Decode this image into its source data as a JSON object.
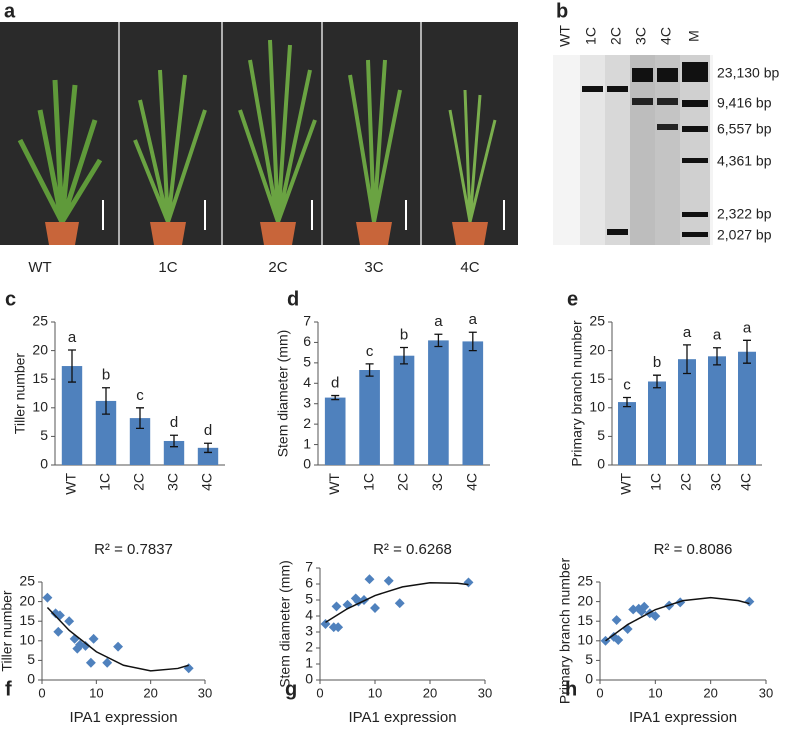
{
  "photo": {
    "panel": "a",
    "labels": [
      "WT",
      "1C",
      "2C",
      "3C",
      "4C"
    ]
  },
  "gel": {
    "panel": "b",
    "lanes": [
      "WT",
      "1C",
      "2C",
      "3C",
      "4C",
      "M"
    ],
    "markers": [
      "23,130 bp",
      "9,416 bp",
      "6,557 bp",
      "4,361 bp",
      "2,322 bp",
      "2,027 bp"
    ]
  },
  "chart_data": [
    {
      "type": "bar",
      "panel": "c",
      "ylabel": "Tiller number",
      "categories": [
        "WT",
        "1C",
        "2C",
        "3C",
        "4C"
      ],
      "values": [
        17.3,
        11.2,
        8.2,
        4.2,
        3.0
      ],
      "errors": [
        2.8,
        2.3,
        1.8,
        1.0,
        0.8
      ],
      "annotations": [
        "a",
        "b",
        "c",
        "d",
        "d"
      ],
      "color": "#4f81bd",
      "ylim": [
        0,
        25
      ],
      "yticks": [
        0,
        5,
        10,
        15,
        20,
        25
      ]
    },
    {
      "type": "bar",
      "panel": "d",
      "ylabel": "Stem diameter (mm)",
      "categories": [
        "WT",
        "1C",
        "2C",
        "3C",
        "4C"
      ],
      "values": [
        3.3,
        4.65,
        5.35,
        6.1,
        6.05
      ],
      "errors": [
        0.1,
        0.3,
        0.4,
        0.3,
        0.45
      ],
      "annotations": [
        "d",
        "c",
        "b",
        "a",
        "a"
      ],
      "color": "#4f81bd",
      "ylim": [
        0,
        7
      ],
      "yticks": [
        0,
        1,
        2,
        3,
        4,
        5,
        6,
        7
      ]
    },
    {
      "type": "bar",
      "panel": "e",
      "ylabel": "Primary branch number",
      "categories": [
        "WT",
        "1C",
        "2C",
        "3C",
        "4C"
      ],
      "values": [
        11,
        14.6,
        18.5,
        19,
        19.8
      ],
      "errors": [
        0.8,
        1.1,
        2.5,
        1.5,
        2.0
      ],
      "annotations": [
        "c",
        "b",
        "a",
        "a",
        "a"
      ],
      "color": "#4f81bd",
      "ylim": [
        0,
        25
      ],
      "yticks": [
        0,
        5,
        10,
        15,
        20,
        25
      ]
    },
    {
      "type": "scatter",
      "panel": "f",
      "annotation": "R² = 0.7837",
      "xlabel": "IPA1 expression",
      "ylabel": "Tiller number",
      "color": "#4f81bd",
      "x": [
        1,
        2.5,
        3,
        3.3,
        5,
        6,
        6.5,
        7,
        8,
        9,
        9.5,
        12,
        14,
        27
      ],
      "y": [
        21,
        17,
        12.3,
        16.5,
        15,
        10.5,
        8,
        9,
        8.7,
        4.4,
        10.5,
        4.4,
        8.5,
        3
      ],
      "trendline": {
        "x": [
          1,
          5,
          10,
          15,
          20,
          25,
          27
        ],
        "y": [
          18.5,
          12.67,
          7.2,
          3.76,
          2.34,
          2.95,
          3.76
        ]
      },
      "xlim": [
        0,
        30
      ],
      "xticks": [
        0,
        10,
        20,
        30
      ],
      "ylim": [
        0,
        25
      ],
      "yticks": [
        0,
        5,
        10,
        15,
        20,
        25
      ]
    },
    {
      "type": "scatter",
      "panel": "g",
      "annotation": "R² = 0.6268",
      "xlabel": "IPA1 expression",
      "ylabel": "Stem diameter (mm)",
      "color": "#4f81bd",
      "x": [
        1,
        2.5,
        3,
        3.3,
        5,
        6.5,
        7,
        8,
        9,
        10,
        12.5,
        14.5,
        27
      ],
      "y": [
        3.5,
        3.3,
        4.6,
        3.3,
        4.7,
        5.1,
        4.9,
        5.0,
        6.3,
        4.5,
        6.2,
        4.8,
        6.1
      ],
      "trendline": {
        "x": [
          1,
          5,
          10,
          15,
          20,
          25,
          27
        ],
        "y": [
          3.6,
          4.46,
          5.28,
          5.82,
          6.08,
          6.05,
          5.96
        ]
      },
      "xlim": [
        0,
        30
      ],
      "xticks": [
        0,
        10,
        20,
        30
      ],
      "ylim": [
        0,
        7
      ],
      "yticks": [
        0,
        1,
        2,
        3,
        4,
        5,
        6,
        7
      ]
    },
    {
      "type": "scatter",
      "panel": "h",
      "annotation": "R² = 0.8086",
      "xlabel": "IPA1 expression",
      "ylabel": "Primary branch number",
      "color": "#4f81bd",
      "x": [
        1,
        2.5,
        3,
        3.3,
        5,
        6,
        7,
        7.5,
        8,
        9,
        10,
        12.5,
        14.5,
        27
      ],
      "y": [
        10,
        11,
        15.3,
        10.2,
        13,
        18,
        18.2,
        17.5,
        18.7,
        17,
        16.3,
        19,
        19.8,
        20
      ],
      "trendline": {
        "x": [
          1,
          5,
          10,
          15,
          20,
          25,
          27
        ],
        "y": [
          10,
          14.14,
          17.95,
          20.24,
          21,
          20.24,
          19.5
        ]
      },
      "xlim": [
        0,
        30
      ],
      "xticks": [
        0,
        10,
        20,
        30
      ],
      "ylim": [
        0,
        25
      ],
      "yticks": [
        0,
        5,
        10,
        15,
        20,
        25
      ]
    }
  ]
}
